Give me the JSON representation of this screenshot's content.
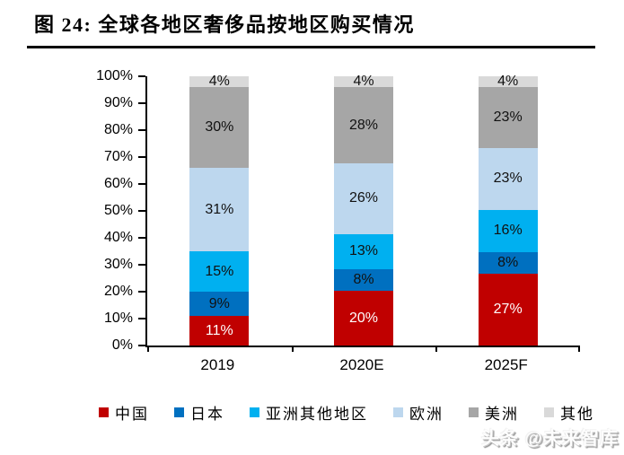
{
  "title": "图 24:  全球各地区奢侈品按地区购买情况",
  "watermark": "头条 @未来智库",
  "chart_data": {
    "type": "bar",
    "stacked": true,
    "title": "全球各地区奢侈品按地区购买情况",
    "categories": [
      "2019",
      "2020E",
      "2025F"
    ],
    "series": [
      {
        "name": "中国",
        "color": "#C00000",
        "label_color": "#FFFFFF",
        "values": [
          11,
          20,
          27
        ]
      },
      {
        "name": "日本",
        "color": "#0070C0",
        "label_color": "#111111",
        "values": [
          9,
          8,
          8
        ]
      },
      {
        "name": "亚洲其他地区",
        "color": "#00B0F0",
        "label_color": "#111111",
        "values": [
          15,
          13,
          16
        ]
      },
      {
        "name": "欧洲",
        "color": "#BDD7EE",
        "label_color": "#111111",
        "values": [
          31,
          26,
          23
        ]
      },
      {
        "name": "美洲",
        "color": "#A6A6A6",
        "label_color": "#111111",
        "values": [
          30,
          28,
          23
        ]
      },
      {
        "name": "其他",
        "color": "#D9D9D9",
        "label_color": "#111111",
        "values": [
          4,
          4,
          4
        ]
      }
    ],
    "value_suffix": "%",
    "y_ticks": [
      "0%",
      "10%",
      "20%",
      "30%",
      "40%",
      "50%",
      "60%",
      "70%",
      "80%",
      "90%",
      "100%"
    ],
    "ylim": [
      0,
      100
    ],
    "grid": false,
    "legend_position": "bottom",
    "xlabel": "",
    "ylabel": ""
  }
}
